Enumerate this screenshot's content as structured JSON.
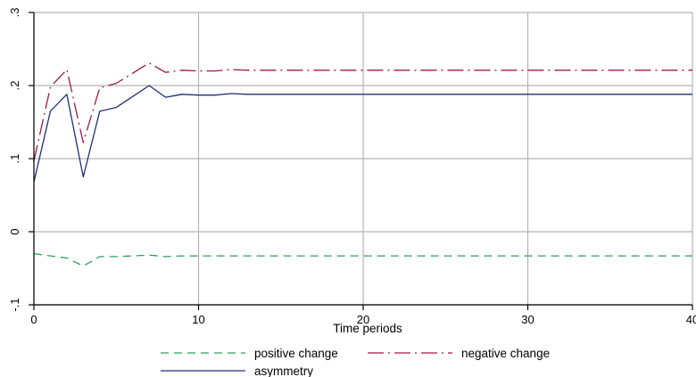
{
  "chart_data": {
    "type": "line",
    "xlabel": "Time periods",
    "ylabel": "",
    "xlim": [
      0,
      40
    ],
    "ylim": [
      -0.1,
      0.3
    ],
    "x_ticks": [
      0,
      10,
      20,
      30,
      40
    ],
    "x_tick_labels": [
      "0",
      "10",
      "20",
      "30",
      "40"
    ],
    "y_ticks": [
      -0.1,
      0,
      0.1,
      0.2,
      0.3
    ],
    "y_tick_labels": [
      "-.1",
      "0",
      ".1",
      ".2",
      ".3"
    ],
    "grid": true,
    "legend_position": "bottom",
    "series": [
      {
        "name": "positive change",
        "color": "#2ca05a",
        "dash": "dashed",
        "x": [
          0,
          1,
          2,
          3,
          4,
          5,
          6,
          7,
          8,
          9,
          10,
          11,
          12,
          13,
          14,
          15,
          16,
          17,
          18,
          19,
          20,
          21,
          22,
          23,
          24,
          25,
          26,
          27,
          28,
          29,
          30,
          31,
          32,
          33,
          34,
          35,
          36,
          37,
          38,
          39,
          40
        ],
        "values": [
          -0.03,
          -0.033,
          -0.036,
          -0.047,
          -0.034,
          -0.034,
          -0.033,
          -0.032,
          -0.034,
          -0.033,
          -0.033,
          -0.033,
          -0.033,
          -0.033,
          -0.033,
          -0.033,
          -0.033,
          -0.033,
          -0.033,
          -0.033,
          -0.033,
          -0.033,
          -0.033,
          -0.033,
          -0.033,
          -0.033,
          -0.033,
          -0.033,
          -0.033,
          -0.033,
          -0.033,
          -0.033,
          -0.033,
          -0.033,
          -0.033,
          -0.033,
          -0.033,
          -0.033,
          -0.033,
          -0.033,
          -0.033
        ]
      },
      {
        "name": "negative change",
        "color": "#a0184a",
        "dash": "longdash-dot",
        "x": [
          0,
          1,
          2,
          3,
          4,
          5,
          6,
          7,
          8,
          9,
          10,
          11,
          12,
          13,
          14,
          15,
          16,
          17,
          18,
          19,
          20,
          21,
          22,
          23,
          24,
          25,
          26,
          27,
          28,
          29,
          30,
          31,
          32,
          33,
          34,
          35,
          36,
          37,
          38,
          39,
          40
        ],
        "values": [
          0.097,
          0.198,
          0.222,
          0.122,
          0.197,
          0.203,
          0.217,
          0.231,
          0.218,
          0.221,
          0.22,
          0.22,
          0.222,
          0.221,
          0.221,
          0.221,
          0.221,
          0.221,
          0.221,
          0.221,
          0.221,
          0.221,
          0.221,
          0.221,
          0.221,
          0.221,
          0.221,
          0.221,
          0.221,
          0.221,
          0.221,
          0.221,
          0.221,
          0.221,
          0.221,
          0.221,
          0.221,
          0.221,
          0.221,
          0.221,
          0.221
        ]
      },
      {
        "name": "asymmetry",
        "color": "#1f2f7a",
        "dash": "solid",
        "x": [
          0,
          1,
          2,
          3,
          4,
          5,
          6,
          7,
          8,
          9,
          10,
          11,
          12,
          13,
          14,
          15,
          16,
          17,
          18,
          19,
          20,
          21,
          22,
          23,
          24,
          25,
          26,
          27,
          28,
          29,
          30,
          31,
          32,
          33,
          34,
          35,
          36,
          37,
          38,
          39,
          40
        ],
        "values": [
          0.068,
          0.165,
          0.188,
          0.075,
          0.165,
          0.17,
          0.185,
          0.2,
          0.184,
          0.188,
          0.187,
          0.187,
          0.189,
          0.188,
          0.188,
          0.188,
          0.188,
          0.188,
          0.188,
          0.188,
          0.188,
          0.188,
          0.188,
          0.188,
          0.188,
          0.188,
          0.188,
          0.188,
          0.188,
          0.188,
          0.188,
          0.188,
          0.188,
          0.188,
          0.188,
          0.188,
          0.188,
          0.188,
          0.188,
          0.188,
          0.188
        ]
      }
    ]
  }
}
